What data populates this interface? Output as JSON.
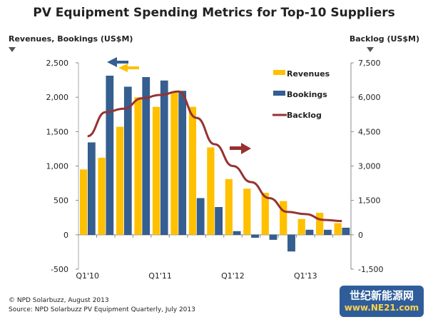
{
  "title": "PV Equipment Spending Metrics for Top-10 Suppliers",
  "left_axis_title": "Revenues, Bookings (US$M)",
  "right_axis_title": "Backlog (US$M)",
  "footer": [
    "© NPD Solarbuzz, August 2013",
    "Source: NPD Solarbuzz PV Equipment Quarterly, July 2013"
  ],
  "watermark": {
    "line1": "世纪新能源网",
    "line2": "www.NE21.com"
  },
  "colors": {
    "revenues": "#FFC000",
    "bookings": "#355E91",
    "backlog": "#963232"
  },
  "chart_data": {
    "type": "bar",
    "categories": [
      "Q1'10",
      "Q2'10",
      "Q3'10",
      "Q4'10",
      "Q1'11",
      "Q2'11",
      "Q3'11",
      "Q4'11",
      "Q1'12",
      "Q2'12",
      "Q3'12",
      "Q4'12",
      "Q1'13",
      "Q2'13",
      "Q3'13"
    ],
    "x_tick_labels": [
      "Q1'10",
      "Q1'11",
      "Q1'12",
      "Q1'13"
    ],
    "series": [
      {
        "name": "Revenues",
        "type": "bar",
        "axis": "left",
        "values": [
          950,
          1120,
          1570,
          2000,
          1860,
          2080,
          1860,
          1270,
          810,
          670,
          610,
          490,
          230,
          320,
          170
        ]
      },
      {
        "name": "Bookings",
        "type": "bar",
        "axis": "left",
        "values": [
          1340,
          2310,
          2150,
          2290,
          2240,
          2090,
          530,
          400,
          50,
          -40,
          -70,
          -240,
          70,
          70,
          100
        ]
      },
      {
        "name": "Backlog",
        "type": "line",
        "axis": "right",
        "values": [
          4300,
          5350,
          5500,
          5950,
          6100,
          6250,
          5100,
          3950,
          3000,
          2300,
          1600,
          1000,
          900,
          650,
          600
        ]
      }
    ],
    "ylim_left": [
      -500,
      2500
    ],
    "yticks_left": [
      "-500",
      "0",
      "500",
      "1,000",
      "1,500",
      "2,000",
      "2,500"
    ],
    "ylim_right": [
      -1500,
      7500
    ],
    "yticks_right": [
      "-1,500",
      "0",
      "1,500",
      "3,000",
      "4,500",
      "6,000",
      "7,500"
    ],
    "legend_position": "top-right",
    "grid": false
  }
}
